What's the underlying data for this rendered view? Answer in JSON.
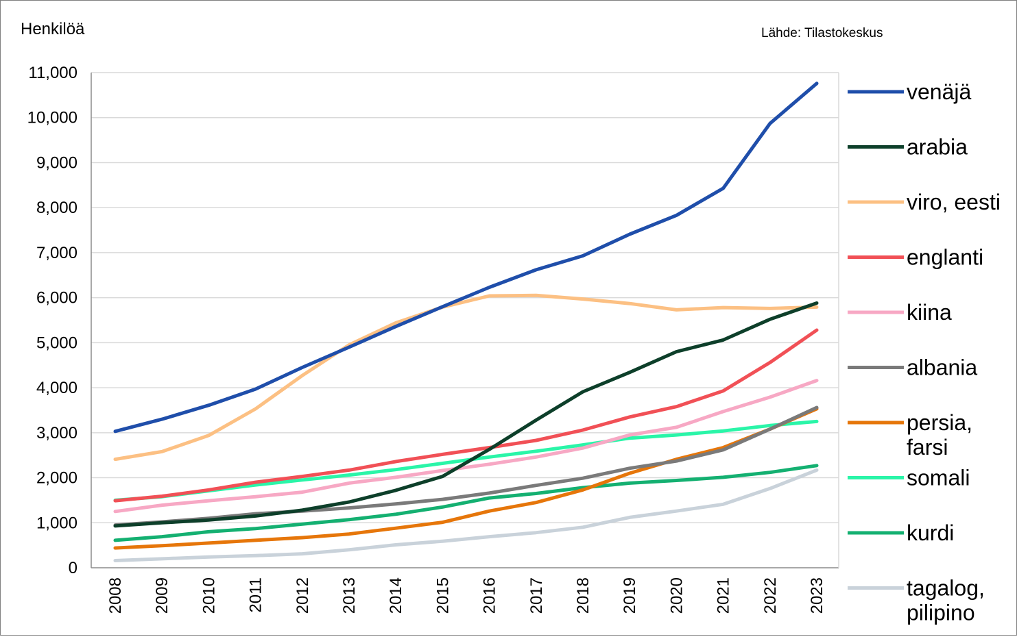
{
  "chart_data": {
    "type": "line",
    "ylabel": "Henkilöä",
    "source": "Lähde: Tilastokeskus",
    "ylim": [
      0,
      11000
    ],
    "yticks": [
      {
        "value": 0,
        "label": "0"
      },
      {
        "value": 1000,
        "label": "1,000"
      },
      {
        "value": 2000,
        "label": "2,000"
      },
      {
        "value": 3000,
        "label": "3,000"
      },
      {
        "value": 4000,
        "label": "4,000"
      },
      {
        "value": 5000,
        "label": "5,000"
      },
      {
        "value": 6000,
        "label": "6,000"
      },
      {
        "value": 7000,
        "label": "7,000"
      },
      {
        "value": 8000,
        "label": "8,000"
      },
      {
        "value": 9000,
        "label": "9,000"
      },
      {
        "value": 10000,
        "label": "10,000"
      },
      {
        "value": 11000,
        "label": "11,000"
      }
    ],
    "grid": true,
    "legend_position": "right",
    "categories": [
      "2008",
      "2009",
      "2010",
      "2011",
      "2012",
      "2013",
      "2014",
      "2015",
      "2016",
      "2017",
      "2018",
      "2019",
      "2020",
      "2021",
      "2022",
      "2023"
    ],
    "series": [
      {
        "name": "venäjä",
        "name_lines": [
          "venäjä"
        ],
        "color": "#1f4eaa",
        "values": [
          3030,
          3300,
          3610,
          3970,
          4450,
          4900,
          5360,
          5800,
          6230,
          6620,
          6930,
          7410,
          7830,
          8430,
          9870,
          10760
        ]
      },
      {
        "name": "arabia",
        "name_lines": [
          "arabia"
        ],
        "color": "#0d3f2a",
        "values": [
          930,
          1000,
          1060,
          1150,
          1280,
          1460,
          1720,
          2030,
          2630,
          3280,
          3910,
          4340,
          4800,
          5060,
          5520,
          5880
        ]
      },
      {
        "name": "viro, eesti",
        "name_lines": [
          "viro, eesti"
        ],
        "color": "#fcc083",
        "values": [
          2410,
          2580,
          2940,
          3530,
          4270,
          4950,
          5440,
          5790,
          6040,
          6050,
          5970,
          5870,
          5730,
          5780,
          5760,
          5790
        ]
      },
      {
        "name": "englanti",
        "name_lines": [
          "englanti"
        ],
        "color": "#f15056",
        "values": [
          1490,
          1590,
          1730,
          1900,
          2030,
          2170,
          2360,
          2520,
          2670,
          2830,
          3060,
          3350,
          3580,
          3930,
          4560,
          5280
        ]
      },
      {
        "name": "kiina",
        "name_lines": [
          "kiina"
        ],
        "color": "#f7a8c4",
        "values": [
          1250,
          1390,
          1490,
          1580,
          1680,
          1880,
          2010,
          2160,
          2300,
          2460,
          2660,
          2950,
          3120,
          3470,
          3790,
          4160
        ]
      },
      {
        "name": "albania",
        "name_lines": [
          "albania"
        ],
        "color": "#7a7a7a",
        "values": [
          950,
          1020,
          1100,
          1200,
          1260,
          1330,
          1420,
          1520,
          1660,
          1830,
          1990,
          2210,
          2370,
          2620,
          3080,
          3560
        ]
      },
      {
        "name": "persia, farsi",
        "name_lines": [
          "persia,",
          "farsi"
        ],
        "color": "#e6760a",
        "values": [
          440,
          490,
          550,
          610,
          670,
          750,
          880,
          1010,
          1260,
          1450,
          1730,
          2100,
          2410,
          2670,
          3080,
          3530
        ]
      },
      {
        "name": "somali",
        "name_lines": [
          "somali"
        ],
        "color": "#2af5a8",
        "values": [
          1500,
          1580,
          1710,
          1840,
          1950,
          2060,
          2180,
          2320,
          2460,
          2590,
          2730,
          2880,
          2950,
          3040,
          3160,
          3250
        ]
      },
      {
        "name": "kurdi",
        "name_lines": [
          "kurdi"
        ],
        "color": "#14b071",
        "values": [
          610,
          690,
          800,
          870,
          970,
          1070,
          1190,
          1350,
          1550,
          1650,
          1780,
          1880,
          1940,
          2010,
          2120,
          2270
        ]
      },
      {
        "name": "tagalog, pilipino",
        "name_lines": [
          "tagalog,",
          "pilipino"
        ],
        "color": "#c9d2da",
        "values": [
          160,
          200,
          240,
          270,
          310,
          400,
          510,
          590,
          690,
          780,
          900,
          1120,
          1260,
          1410,
          1760,
          2170
        ]
      }
    ]
  }
}
